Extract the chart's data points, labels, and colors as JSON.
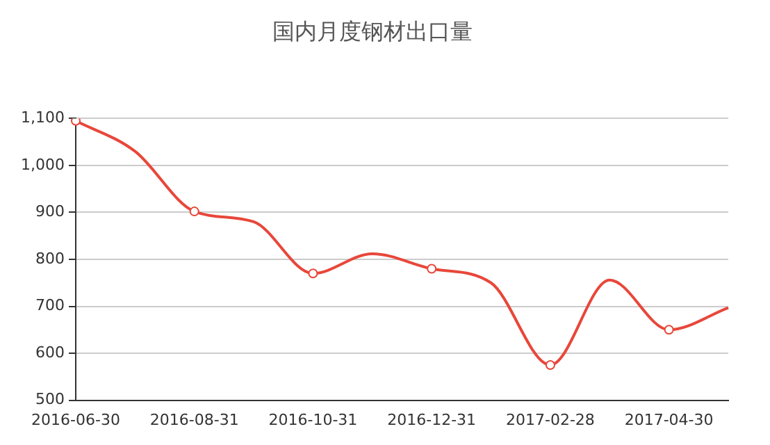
{
  "chart_data": {
    "type": "line",
    "title": "国内月度钢材出口量",
    "categories": [
      "2016-06-30",
      null,
      "2016-08-31",
      null,
      "2016-10-31",
      null,
      "2016-12-31",
      null,
      "2017-02-28",
      null,
      "2017-04-30",
      null
    ],
    "series": [
      {
        "color": "#e8473a",
        "values": [
          1095,
          1030,
          902,
          880,
          770,
          812,
          780,
          750,
          575,
          756,
          650,
          697
        ]
      }
    ],
    "ylim": [
      500,
      1100
    ],
    "yticks": [
      500,
      600,
      700,
      800,
      900,
      {
        "value": 1000,
        "label": "1,000"
      },
      {
        "value": 1100,
        "label": "1,100"
      }
    ],
    "grid": "y",
    "legend": false,
    "marker": "circle",
    "line_style": "solid"
  }
}
